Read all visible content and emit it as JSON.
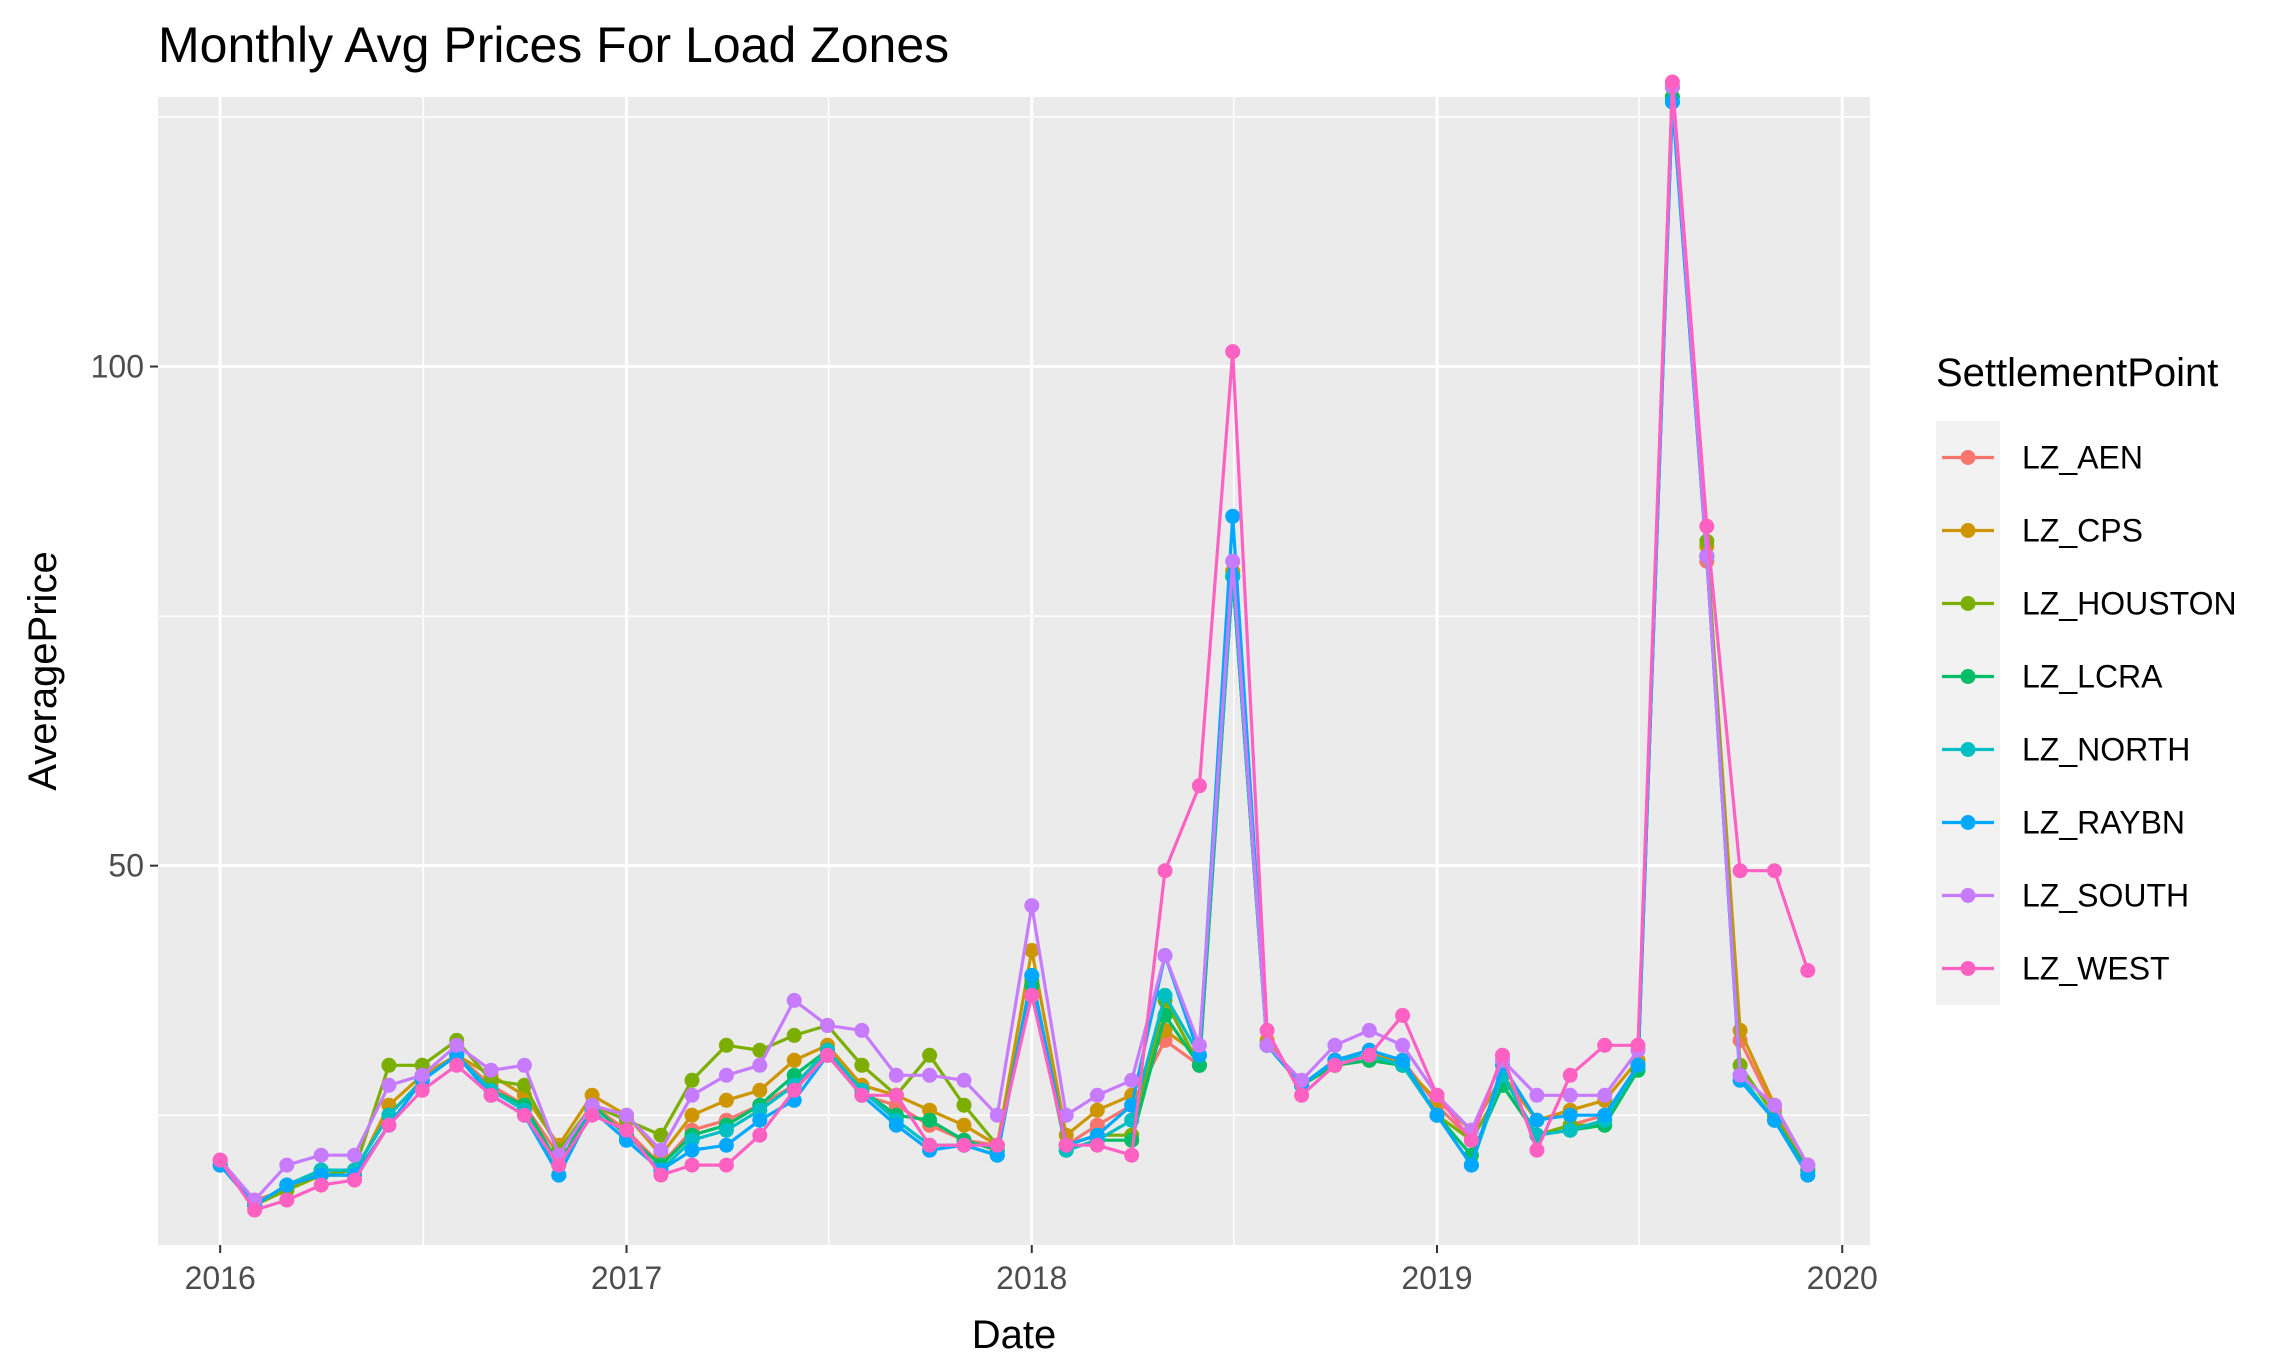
{
  "chart_data": {
    "type": "line",
    "title": "Monthly Avg Prices For Load Zones",
    "xlabel": "Date",
    "ylabel": "AveragePrice",
    "x_ticks": [
      "2016",
      "2017",
      "2018",
      "2019",
      "2020"
    ],
    "y_ticks": [
      "50",
      "100"
    ],
    "xlim": [
      "2015-11-06",
      "2020-01-26"
    ],
    "ylim": [
      12,
      127
    ],
    "grid": true,
    "legend_title": "SettlementPoint",
    "legend_position": "right",
    "x": [
      "2016-01",
      "2016-02",
      "2016-03",
      "2016-04",
      "2016-05",
      "2016-06",
      "2016-07",
      "2016-08",
      "2016-09",
      "2016-10",
      "2016-11",
      "2016-12",
      "2017-01",
      "2017-02",
      "2017-03",
      "2017-04",
      "2017-05",
      "2017-06",
      "2017-07",
      "2017-08",
      "2017-09",
      "2017-10",
      "2017-11",
      "2017-12",
      "2018-01",
      "2018-02",
      "2018-03",
      "2018-04",
      "2018-05",
      "2018-06",
      "2018-07",
      "2018-08",
      "2018-09",
      "2018-10",
      "2018-11",
      "2018-12",
      "2019-01",
      "2019-02",
      "2019-03",
      "2019-04",
      "2019-05",
      "2019-06",
      "2019-07",
      "2019-08",
      "2019-09",
      "2019-10",
      "2019-11",
      "2019-12"
    ],
    "series": [
      {
        "name": "LZ_AEN",
        "color": "#F8766D",
        "values": [
          20.5,
          16.5,
          17.5,
          19.5,
          19.5,
          25,
          28.5,
          31,
          28,
          26,
          21,
          26,
          23.5,
          20,
          23.5,
          24.5,
          26,
          28,
          31,
          27,
          26,
          24,
          22.5,
          22,
          38,
          22,
          24,
          26,
          32.5,
          30,
          79,
          32,
          28,
          30,
          31,
          30.5,
          26,
          22.5,
          28,
          23,
          24,
          25,
          30,
          127,
          80.5,
          32.5,
          25.5,
          20
        ]
      },
      {
        "name": "LZ_CPS",
        "color": "#CD9600",
        "values": [
          20,
          16,
          17.5,
          19,
          19,
          26,
          29,
          31,
          29,
          27,
          22,
          27,
          25,
          21,
          25,
          26.5,
          27.5,
          30.5,
          32,
          28,
          27,
          25.5,
          24,
          22,
          41.5,
          23,
          25.5,
          27,
          33.5,
          31,
          79.5,
          32.5,
          28,
          30.5,
          31.5,
          30,
          26.5,
          23.5,
          29,
          24.5,
          25.5,
          26.5,
          30.5,
          128,
          82,
          33.5,
          26,
          20
        ]
      },
      {
        "name": "LZ_HOUSTON",
        "color": "#7CAE00",
        "values": [
          20,
          16,
          17.5,
          19,
          19.5,
          30,
          30,
          32.5,
          28.5,
          28,
          21.5,
          26,
          24.5,
          23,
          28.5,
          32,
          31.5,
          33,
          34,
          30,
          27,
          31,
          26,
          22,
          38.5,
          22,
          23,
          23,
          36.5,
          30,
          79,
          32,
          28,
          30,
          30.5,
          30,
          25,
          22.5,
          28,
          23,
          24,
          24,
          30,
          128,
          82.5,
          30,
          25,
          19.5
        ]
      },
      {
        "name": "LZ_LCRA",
        "color": "#00BE67",
        "values": [
          20,
          16,
          18,
          19.5,
          19.5,
          25,
          28.5,
          31,
          27.5,
          26,
          20,
          26,
          23,
          20,
          23,
          24,
          26,
          29,
          31.5,
          27.5,
          25,
          24.5,
          22.5,
          21.5,
          38,
          21.5,
          22.5,
          22.5,
          35,
          30,
          79,
          32,
          28,
          30,
          30.5,
          30,
          25,
          21,
          28,
          23,
          23.5,
          24,
          29.5,
          127,
          81,
          29,
          24.5,
          19.5
        ]
      },
      {
        "name": "LZ_NORTH",
        "color": "#00BFC4",
        "values": [
          20,
          16,
          18,
          19.5,
          19.5,
          25,
          28.5,
          31,
          27.5,
          25.5,
          19,
          25.5,
          22.5,
          19.5,
          22.5,
          23.5,
          25.5,
          28,
          31.5,
          27.5,
          24.5,
          22,
          22,
          21,
          39,
          21.5,
          22.5,
          24.5,
          37,
          31,
          79,
          32,
          28,
          30.5,
          31,
          30,
          25,
          20,
          29,
          23,
          23.5,
          24.5,
          30,
          126.5,
          81,
          29,
          24.5,
          19
        ]
      },
      {
        "name": "LZ_RAYBN",
        "color": "#00A9FF",
        "values": [
          20,
          16,
          18,
          19,
          19,
          24,
          28.5,
          31,
          27,
          25,
          19,
          25.5,
          22.5,
          19.5,
          21.5,
          22,
          24.5,
          26.5,
          31,
          27,
          24,
          21.5,
          22,
          21,
          39,
          22,
          23,
          26,
          41,
          31,
          85,
          32,
          28,
          30.5,
          31.5,
          30.5,
          25,
          20,
          30,
          24.5,
          25,
          25,
          30,
          126.5,
          81,
          28.5,
          24.5,
          19
        ]
      },
      {
        "name": "LZ_SOUTH",
        "color": "#C77CFF",
        "values": [
          20.5,
          16.5,
          20,
          21,
          21,
          28,
          29,
          32,
          29.5,
          30,
          21,
          26,
          25,
          21.5,
          27,
          29,
          30,
          36.5,
          34,
          33.5,
          29,
          29,
          28.5,
          25,
          46,
          25,
          27,
          28.5,
          41,
          32,
          80.5,
          32,
          28.5,
          32,
          33.5,
          32,
          27,
          23.5,
          30.5,
          27,
          27,
          27,
          31.5,
          128,
          81,
          29,
          26,
          20
        ]
      },
      {
        "name": "LZ_WEST",
        "color": "#FF61C3",
        "values": [
          20.5,
          15.5,
          16.5,
          18,
          18.5,
          24,
          27.5,
          30,
          27,
          25,
          20,
          25,
          23.5,
          19,
          20,
          20,
          23,
          27.5,
          31,
          27,
          27,
          22,
          22,
          22,
          37,
          22,
          22,
          21,
          49.5,
          58,
          101.5,
          33.5,
          27,
          30,
          31,
          35,
          27,
          22.5,
          31,
          21.5,
          29,
          32,
          32,
          128.5,
          84,
          49.5,
          49.5,
          39.5
        ]
      }
    ]
  }
}
